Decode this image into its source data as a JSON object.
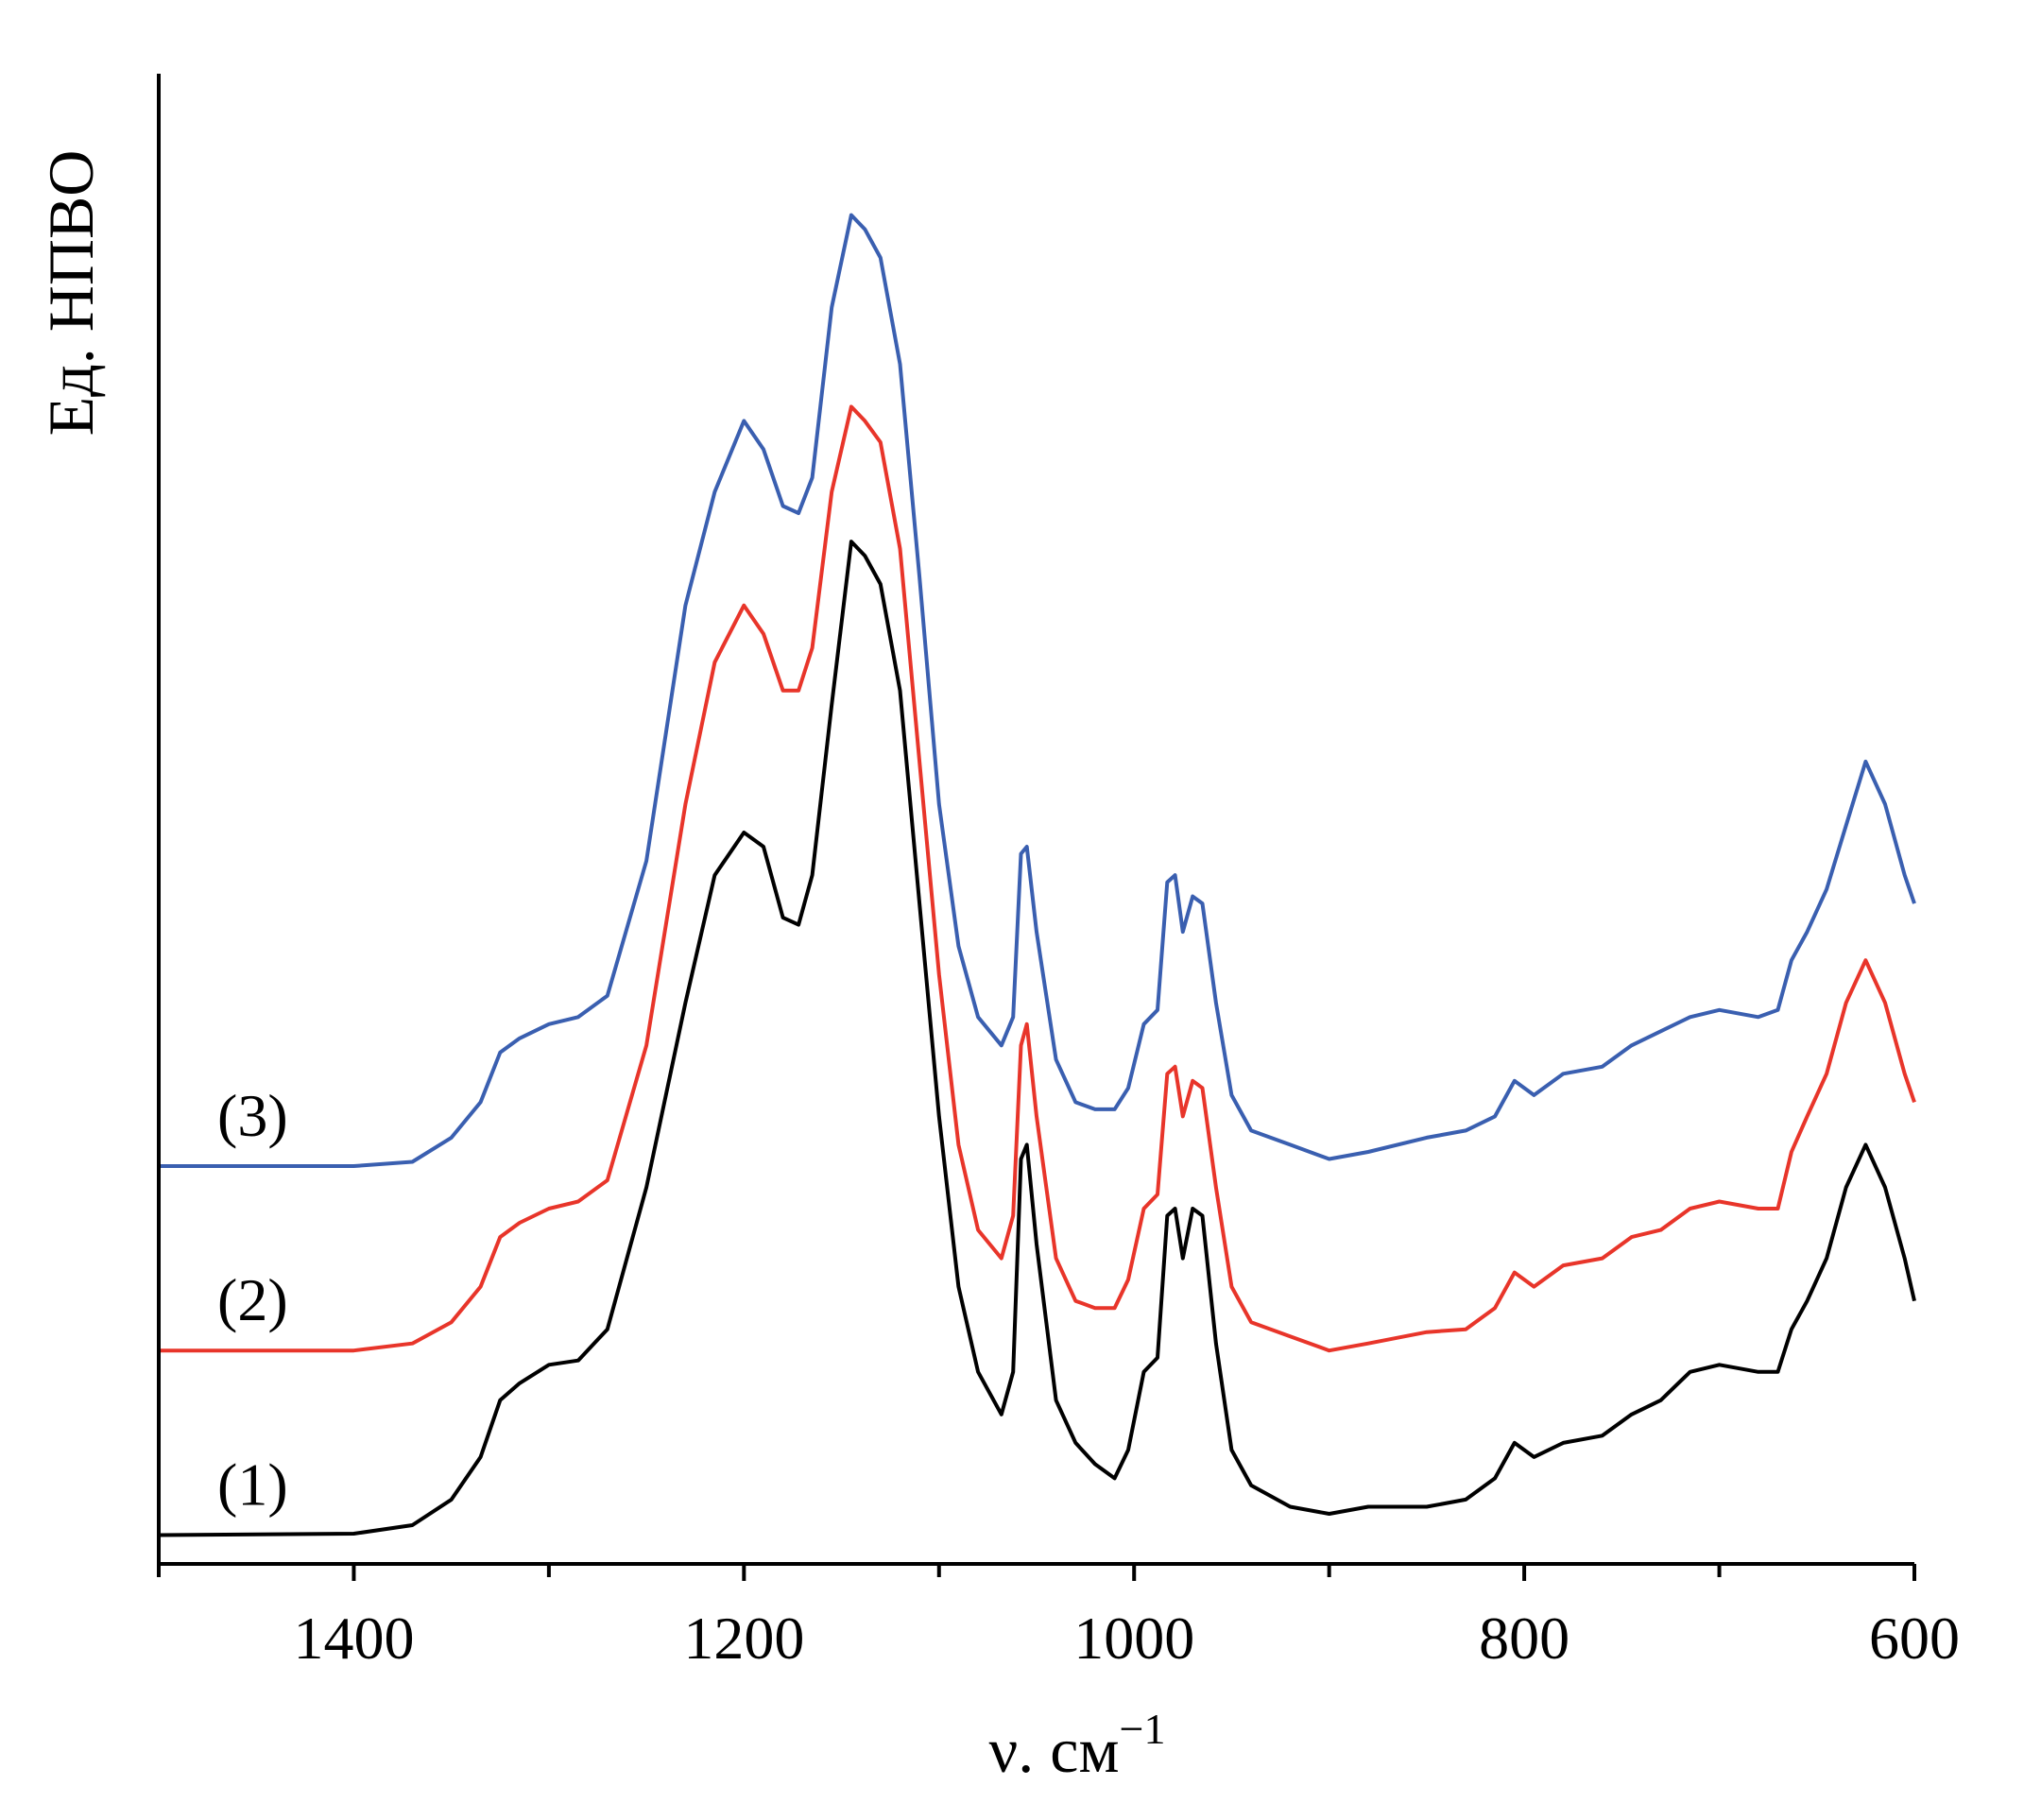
{
  "chart_data": {
    "type": "line",
    "xlabel": "ν. см",
    "xlabel_sup": "−1",
    "ylabel": "Ед. НПВО",
    "xlim": [
      1500,
      600
    ],
    "x_reversed": true,
    "grid": false,
    "x_ticks": [
      1400,
      1200,
      1000,
      800,
      600
    ],
    "x_tick_labels": [
      "1400",
      "1200",
      "1000",
      "800",
      "600"
    ],
    "x_minor_ticks": [
      1500,
      1300,
      1100,
      900,
      700
    ],
    "ylim": [
      0,
      1
    ],
    "y_ticks_shown": false,
    "series": [
      {
        "label": "(1)",
        "color": "#000000",
        "points": [
          [
            1500,
            0.005
          ],
          [
            1400,
            0.006
          ],
          [
            1370,
            0.012
          ],
          [
            1350,
            0.03
          ],
          [
            1335,
            0.06
          ],
          [
            1325,
            0.1
          ],
          [
            1315,
            0.112
          ],
          [
            1300,
            0.125
          ],
          [
            1285,
            0.128
          ],
          [
            1270,
            0.15
          ],
          [
            1250,
            0.25
          ],
          [
            1230,
            0.38
          ],
          [
            1215,
            0.47
          ],
          [
            1200,
            0.5
          ],
          [
            1190,
            0.49
          ],
          [
            1180,
            0.44
          ],
          [
            1172,
            0.435
          ],
          [
            1165,
            0.47
          ],
          [
            1155,
            0.59
          ],
          [
            1145,
            0.705
          ],
          [
            1138,
            0.695
          ],
          [
            1130,
            0.675
          ],
          [
            1120,
            0.6
          ],
          [
            1110,
            0.45
          ],
          [
            1100,
            0.3
          ],
          [
            1090,
            0.18
          ],
          [
            1080,
            0.12
          ],
          [
            1068,
            0.09
          ],
          [
            1062,
            0.12
          ],
          [
            1058,
            0.27
          ],
          [
            1055,
            0.28
          ],
          [
            1050,
            0.21
          ],
          [
            1040,
            0.1
          ],
          [
            1030,
            0.07
          ],
          [
            1020,
            0.055
          ],
          [
            1010,
            0.045
          ],
          [
            1003,
            0.065
          ],
          [
            995,
            0.12
          ],
          [
            988,
            0.13
          ],
          [
            983,
            0.23
          ],
          [
            979,
            0.235
          ],
          [
            975,
            0.2
          ],
          [
            970,
            0.235
          ],
          [
            965,
            0.23
          ],
          [
            958,
            0.14
          ],
          [
            950,
            0.065
          ],
          [
            940,
            0.04
          ],
          [
            920,
            0.025
          ],
          [
            900,
            0.02
          ],
          [
            880,
            0.025
          ],
          [
            850,
            0.025
          ],
          [
            830,
            0.03
          ],
          [
            815,
            0.045
          ],
          [
            805,
            0.07
          ],
          [
            795,
            0.06
          ],
          [
            780,
            0.07
          ],
          [
            760,
            0.075
          ],
          [
            745,
            0.09
          ],
          [
            730,
            0.1
          ],
          [
            715,
            0.12
          ],
          [
            700,
            0.125
          ],
          [
            680,
            0.12
          ],
          [
            670,
            0.12
          ],
          [
            663,
            0.15
          ],
          [
            655,
            0.17
          ],
          [
            645,
            0.2
          ],
          [
            635,
            0.25
          ],
          [
            625,
            0.28
          ],
          [
            615,
            0.25
          ],
          [
            605,
            0.2
          ],
          [
            600,
            0.17
          ]
        ]
      },
      {
        "label": "(2)",
        "color": "#e8352a",
        "points": [
          [
            1500,
            0.135
          ],
          [
            1400,
            0.135
          ],
          [
            1370,
            0.14
          ],
          [
            1350,
            0.155
          ],
          [
            1335,
            0.18
          ],
          [
            1325,
            0.215
          ],
          [
            1315,
            0.225
          ],
          [
            1300,
            0.235
          ],
          [
            1285,
            0.24
          ],
          [
            1270,
            0.255
          ],
          [
            1250,
            0.35
          ],
          [
            1230,
            0.52
          ],
          [
            1215,
            0.62
          ],
          [
            1200,
            0.66
          ],
          [
            1190,
            0.64
          ],
          [
            1180,
            0.6
          ],
          [
            1172,
            0.6
          ],
          [
            1165,
            0.63
          ],
          [
            1155,
            0.74
          ],
          [
            1145,
            0.8
          ],
          [
            1138,
            0.79
          ],
          [
            1130,
            0.775
          ],
          [
            1120,
            0.7
          ],
          [
            1110,
            0.55
          ],
          [
            1100,
            0.4
          ],
          [
            1090,
            0.28
          ],
          [
            1080,
            0.22
          ],
          [
            1068,
            0.2
          ],
          [
            1062,
            0.23
          ],
          [
            1058,
            0.35
          ],
          [
            1055,
            0.365
          ],
          [
            1050,
            0.3
          ],
          [
            1040,
            0.2
          ],
          [
            1030,
            0.17
          ],
          [
            1020,
            0.165
          ],
          [
            1010,
            0.165
          ],
          [
            1003,
            0.185
          ],
          [
            995,
            0.235
          ],
          [
            988,
            0.245
          ],
          [
            983,
            0.33
          ],
          [
            979,
            0.335
          ],
          [
            975,
            0.3
          ],
          [
            970,
            0.325
          ],
          [
            965,
            0.32
          ],
          [
            958,
            0.25
          ],
          [
            950,
            0.18
          ],
          [
            940,
            0.155
          ],
          [
            920,
            0.145
          ],
          [
            900,
            0.135
          ],
          [
            880,
            0.14
          ],
          [
            850,
            0.148
          ],
          [
            830,
            0.15
          ],
          [
            815,
            0.165
          ],
          [
            805,
            0.19
          ],
          [
            795,
            0.18
          ],
          [
            780,
            0.195
          ],
          [
            760,
            0.2
          ],
          [
            745,
            0.215
          ],
          [
            730,
            0.22
          ],
          [
            715,
            0.235
          ],
          [
            700,
            0.24
          ],
          [
            680,
            0.235
          ],
          [
            670,
            0.235
          ],
          [
            663,
            0.275
          ],
          [
            655,
            0.3
          ],
          [
            645,
            0.33
          ],
          [
            635,
            0.38
          ],
          [
            625,
            0.41
          ],
          [
            615,
            0.38
          ],
          [
            605,
            0.33
          ],
          [
            600,
            0.31
          ]
        ]
      },
      {
        "label": "(3)",
        "color": "#3a5fb0",
        "points": [
          [
            1500,
            0.265
          ],
          [
            1400,
            0.265
          ],
          [
            1370,
            0.268
          ],
          [
            1350,
            0.285
          ],
          [
            1335,
            0.31
          ],
          [
            1325,
            0.345
          ],
          [
            1315,
            0.355
          ],
          [
            1300,
            0.365
          ],
          [
            1285,
            0.37
          ],
          [
            1270,
            0.385
          ],
          [
            1250,
            0.48
          ],
          [
            1230,
            0.66
          ],
          [
            1215,
            0.74
          ],
          [
            1200,
            0.79
          ],
          [
            1190,
            0.77
          ],
          [
            1180,
            0.73
          ],
          [
            1172,
            0.725
          ],
          [
            1165,
            0.75
          ],
          [
            1155,
            0.87
          ],
          [
            1145,
            0.935
          ],
          [
            1138,
            0.925
          ],
          [
            1130,
            0.905
          ],
          [
            1120,
            0.83
          ],
          [
            1110,
            0.68
          ],
          [
            1100,
            0.52
          ],
          [
            1090,
            0.42
          ],
          [
            1080,
            0.37
          ],
          [
            1068,
            0.35
          ],
          [
            1062,
            0.37
          ],
          [
            1058,
            0.485
          ],
          [
            1055,
            0.49
          ],
          [
            1050,
            0.43
          ],
          [
            1040,
            0.34
          ],
          [
            1030,
            0.31
          ],
          [
            1020,
            0.305
          ],
          [
            1010,
            0.305
          ],
          [
            1003,
            0.32
          ],
          [
            995,
            0.365
          ],
          [
            988,
            0.375
          ],
          [
            983,
            0.465
          ],
          [
            979,
            0.47
          ],
          [
            975,
            0.43
          ],
          [
            970,
            0.455
          ],
          [
            965,
            0.45
          ],
          [
            958,
            0.38
          ],
          [
            950,
            0.315
          ],
          [
            940,
            0.29
          ],
          [
            920,
            0.28
          ],
          [
            900,
            0.27
          ],
          [
            880,
            0.275
          ],
          [
            850,
            0.285
          ],
          [
            830,
            0.29
          ],
          [
            815,
            0.3
          ],
          [
            805,
            0.325
          ],
          [
            795,
            0.315
          ],
          [
            780,
            0.33
          ],
          [
            760,
            0.335
          ],
          [
            745,
            0.35
          ],
          [
            730,
            0.36
          ],
          [
            715,
            0.37
          ],
          [
            700,
            0.375
          ],
          [
            680,
            0.37
          ],
          [
            670,
            0.375
          ],
          [
            663,
            0.41
          ],
          [
            655,
            0.43
          ],
          [
            645,
            0.46
          ],
          [
            635,
            0.505
          ],
          [
            625,
            0.55
          ],
          [
            615,
            0.52
          ],
          [
            605,
            0.47
          ],
          [
            600,
            0.45
          ]
        ]
      }
    ]
  }
}
